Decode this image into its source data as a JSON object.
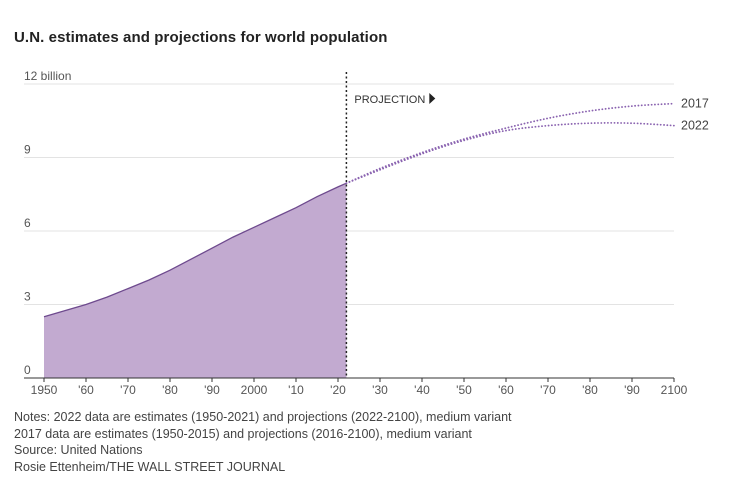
{
  "chart_data": {
    "type": "area",
    "title": "U.N. estimates and projections for world population",
    "y_unit_label": "12 billion",
    "ylim": [
      0,
      12
    ],
    "xlim": [
      1950,
      2100
    ],
    "y_ticks": [
      {
        "value": 0,
        "label": "0"
      },
      {
        "value": 3,
        "label": "3"
      },
      {
        "value": 6,
        "label": "6"
      },
      {
        "value": 9,
        "label": "9"
      },
      {
        "value": 12,
        "label": "12 billion"
      }
    ],
    "x_ticks": [
      {
        "value": 1950,
        "label": "1950"
      },
      {
        "value": 1960,
        "label": "'60"
      },
      {
        "value": 1970,
        "label": "'70"
      },
      {
        "value": 1980,
        "label": "'80"
      },
      {
        "value": 1990,
        "label": "'90"
      },
      {
        "value": 2000,
        "label": "2000"
      },
      {
        "value": 2010,
        "label": "'10"
      },
      {
        "value": 2020,
        "label": "'20"
      },
      {
        "value": 2030,
        "label": "'30"
      },
      {
        "value": 2040,
        "label": "'40"
      },
      {
        "value": 2050,
        "label": "'50"
      },
      {
        "value": 2060,
        "label": "'60"
      },
      {
        "value": 2070,
        "label": "'70"
      },
      {
        "value": 2080,
        "label": "'80"
      },
      {
        "value": 2090,
        "label": "'90"
      },
      {
        "value": 2100,
        "label": "2100"
      }
    ],
    "grid": true,
    "projection_start_year": 2022,
    "projection_label": "PROJECTION",
    "estimates": {
      "x": [
        1950,
        1955,
        1960,
        1965,
        1970,
        1975,
        1980,
        1985,
        1990,
        1995,
        2000,
        2005,
        2010,
        2015,
        2020,
        2022
      ],
      "y": [
        2.5,
        2.75,
        3.0,
        3.3,
        3.65,
        4.0,
        4.4,
        4.85,
        5.3,
        5.75,
        6.15,
        6.55,
        6.95,
        7.4,
        7.8,
        7.95
      ]
    },
    "series": [
      {
        "name": "2017",
        "x": [
          2022,
          2030,
          2040,
          2050,
          2060,
          2070,
          2080,
          2090,
          2100
        ],
        "y": [
          7.95,
          8.55,
          9.2,
          9.75,
          10.2,
          10.6,
          10.9,
          11.1,
          11.2
        ]
      },
      {
        "name": "2022",
        "x": [
          2022,
          2030,
          2040,
          2050,
          2060,
          2070,
          2080,
          2090,
          2100
        ],
        "y": [
          7.95,
          8.5,
          9.15,
          9.7,
          10.1,
          10.3,
          10.4,
          10.4,
          10.3
        ]
      }
    ],
    "colors": {
      "area_fill": "#c2aad0",
      "area_line": "#6e4a8e",
      "projection_dots": "#8a63b0",
      "grid": "#e3e3e3",
      "divider": "#222222"
    }
  },
  "notes": [
    "Notes: 2022 data are estimates (1950-2021) and projections (2022-2100), medium variant",
    "2017 data are estimates (1950-2015) and projections (2016-2100), medium variant",
    "Source: United Nations",
    "Rosie Ettenheim/THE WALL STREET JOURNAL"
  ]
}
